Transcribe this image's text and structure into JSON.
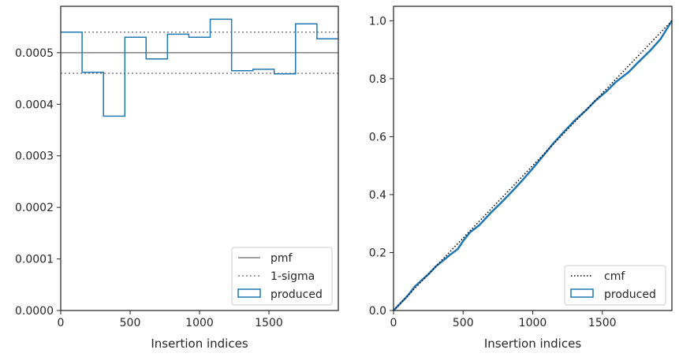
{
  "chart_data": [
    {
      "type": "step",
      "xlabel": "Insertion indices",
      "xlim": [
        0,
        2000
      ],
      "ylim": [
        0,
        0.00059
      ],
      "xticks": [
        0,
        500,
        1000,
        1500
      ],
      "xtick_labels": [
        "0",
        "500",
        "1000",
        "1500"
      ],
      "yticks": [
        0,
        0.0001,
        0.0002,
        0.0003,
        0.0004,
        0.0005
      ],
      "ytick_labels": [
        "0.0000",
        "0.0001",
        "0.0002",
        "0.0003",
        "0.0004",
        "0.0005"
      ],
      "pmf": 0.0005,
      "sigma_band": [
        0.00046,
        0.00054
      ],
      "bin_edges": [
        0,
        154,
        308,
        462,
        615,
        769,
        923,
        1077,
        1231,
        1385,
        1538,
        1692,
        1846,
        2000
      ],
      "produced_values": [
        0.00054,
        0.000462,
        0.000377,
        0.00053,
        0.000488,
        0.000536,
        0.00053,
        0.000565,
        0.000465,
        0.000468,
        0.000459,
        0.000556,
        0.000527
      ],
      "grid": false,
      "legend_position": "lower right",
      "legend": [
        {
          "label": "pmf",
          "style": "solid",
          "color": "#808080"
        },
        {
          "label": "1-sigma",
          "style": "dotted",
          "color": "#808080"
        },
        {
          "label": "produced",
          "style": "box",
          "color": "#1f77b4"
        }
      ]
    },
    {
      "type": "line",
      "xlabel": "Insertion indices",
      "xlim": [
        0,
        2000
      ],
      "ylim": [
        0,
        1.05
      ],
      "xticks": [
        0,
        500,
        1000,
        1500
      ],
      "xtick_labels": [
        "0",
        "500",
        "1000",
        "1500"
      ],
      "yticks": [
        0,
        0.2,
        0.4,
        0.6,
        0.8,
        1.0
      ],
      "ytick_labels": [
        "0.0",
        "0.2",
        "0.4",
        "0.6",
        "0.8",
        "1.0"
      ],
      "cmf": {
        "x": [
          0,
          2000
        ],
        "y": [
          0,
          1.0
        ]
      },
      "produced": {
        "x": [
          0,
          100,
          154,
          250,
          308,
          350,
          400,
          462,
          500,
          550,
          615,
          700,
          769,
          850,
          923,
          1000,
          1077,
          1150,
          1231,
          1300,
          1385,
          1450,
          1538,
          1600,
          1692,
          1750,
          1846,
          1920,
          2000
        ],
        "y": [
          0,
          0.05,
          0.083,
          0.125,
          0.154,
          0.17,
          0.19,
          0.212,
          0.24,
          0.27,
          0.294,
          0.338,
          0.37,
          0.41,
          0.448,
          0.49,
          0.535,
          0.578,
          0.62,
          0.655,
          0.692,
          0.724,
          0.76,
          0.79,
          0.824,
          0.853,
          0.898,
          0.938,
          1.0
        ]
      },
      "grid": false,
      "legend_position": "lower right",
      "legend": [
        {
          "label": "cmf",
          "style": "dotted",
          "color": "#000000"
        },
        {
          "label": "produced",
          "style": "box",
          "color": "#1f77b4"
        }
      ]
    }
  ]
}
